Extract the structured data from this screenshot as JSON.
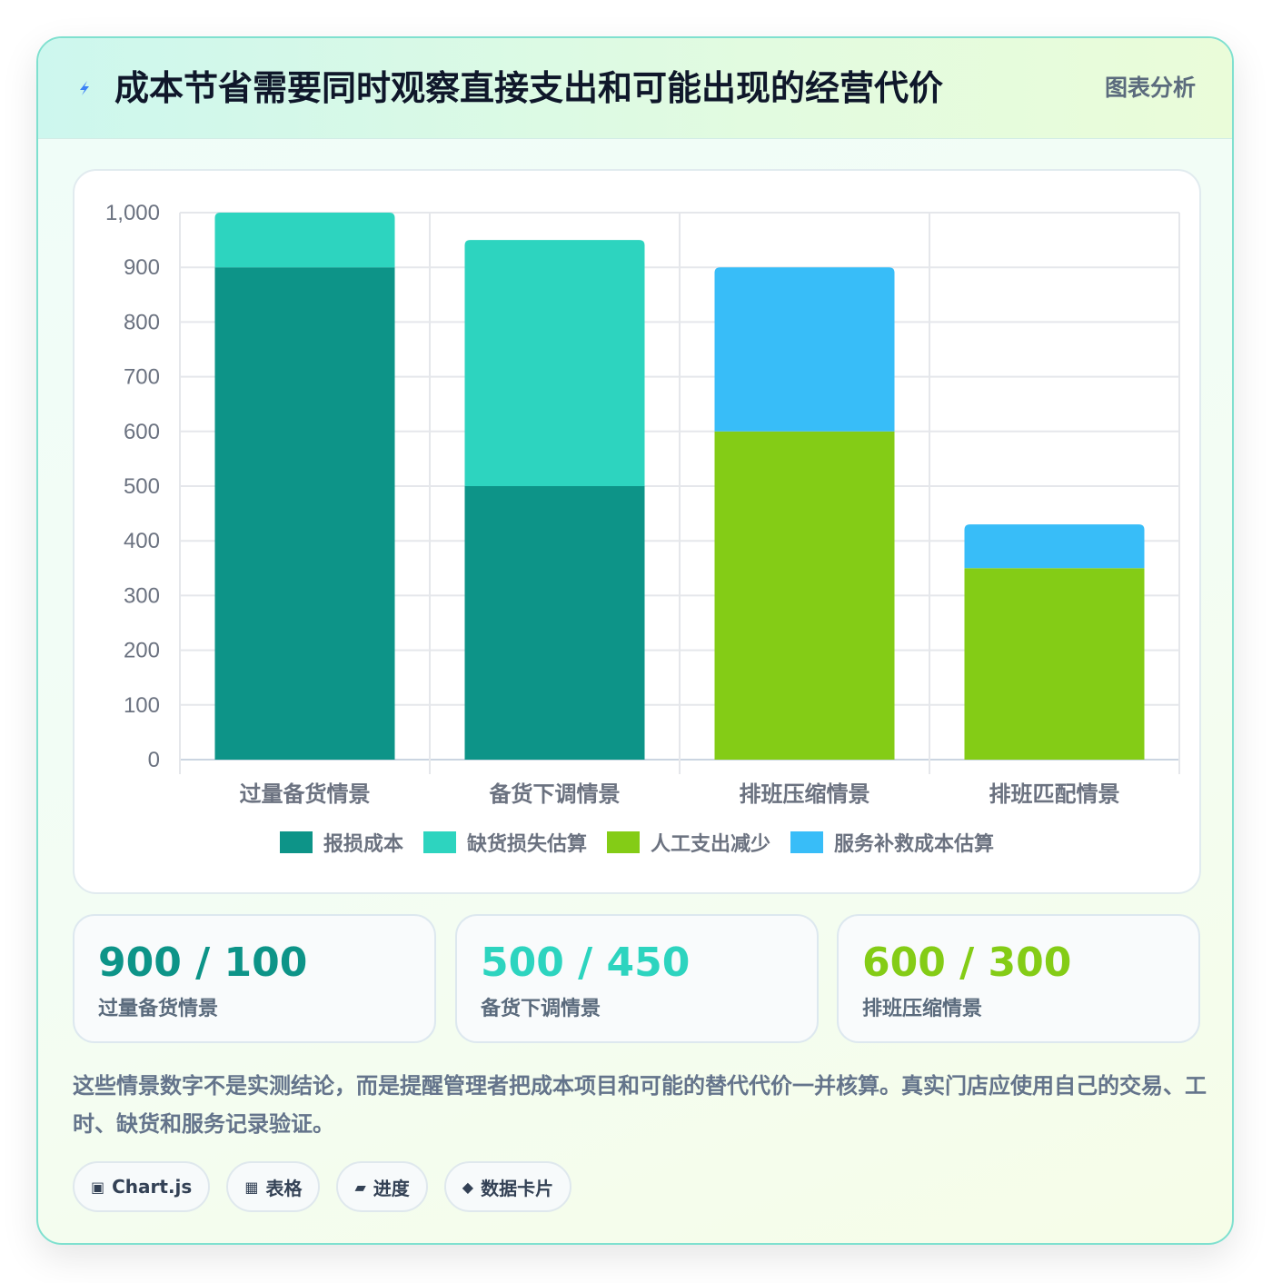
{
  "header": {
    "title": "成本节省需要同时观察直接支出和可能出现的经营代价",
    "tag": "图表分析",
    "icon": "lightning-icon"
  },
  "chart_data": {
    "type": "bar",
    "stacked": true,
    "categories": [
      "过量备货情景",
      "备货下调情景",
      "排班压缩情景",
      "排班匹配情景"
    ],
    "series": [
      {
        "name": "报损成本",
        "color": "#0d9488",
        "values": [
          900,
          500,
          0,
          0
        ]
      },
      {
        "name": "缺货损失估算",
        "color": "#2dd4bf",
        "values": [
          100,
          450,
          0,
          0
        ]
      },
      {
        "name": "人工支出减少",
        "color": "#84cc16",
        "values": [
          0,
          0,
          600,
          350
        ]
      },
      {
        "name": "服务补救成本估算",
        "color": "#38bdf8",
        "values": [
          0,
          0,
          300,
          80
        ]
      }
    ],
    "ylim": [
      0,
      1000
    ],
    "yticks": [
      "0",
      "100",
      "200",
      "300",
      "400",
      "500",
      "600",
      "700",
      "800",
      "900",
      "1,000"
    ],
    "grid": true,
    "legend": "bottom"
  },
  "stats": [
    {
      "value": "900 / 100",
      "label": "过量备货情景",
      "color": "#0d9488"
    },
    {
      "value": "500 / 450",
      "label": "备货下调情景",
      "color": "#2dd4bf"
    },
    {
      "value": "600 / 300",
      "label": "排班压缩情景",
      "color": "#84cc16"
    }
  ],
  "note": "这些情景数字不是实测结论，而是提醒管理者把成本项目和可能的替代代价一并核算。真实门店应使用自己的交易、工时、缺货和服务记录验证。",
  "chips": [
    {
      "icon": "▣",
      "label": "Chart.js"
    },
    {
      "icon": "▦",
      "label": "表格"
    },
    {
      "icon": "▰",
      "label": "进度"
    },
    {
      "icon": "◆",
      "label": "数据卡片"
    }
  ]
}
